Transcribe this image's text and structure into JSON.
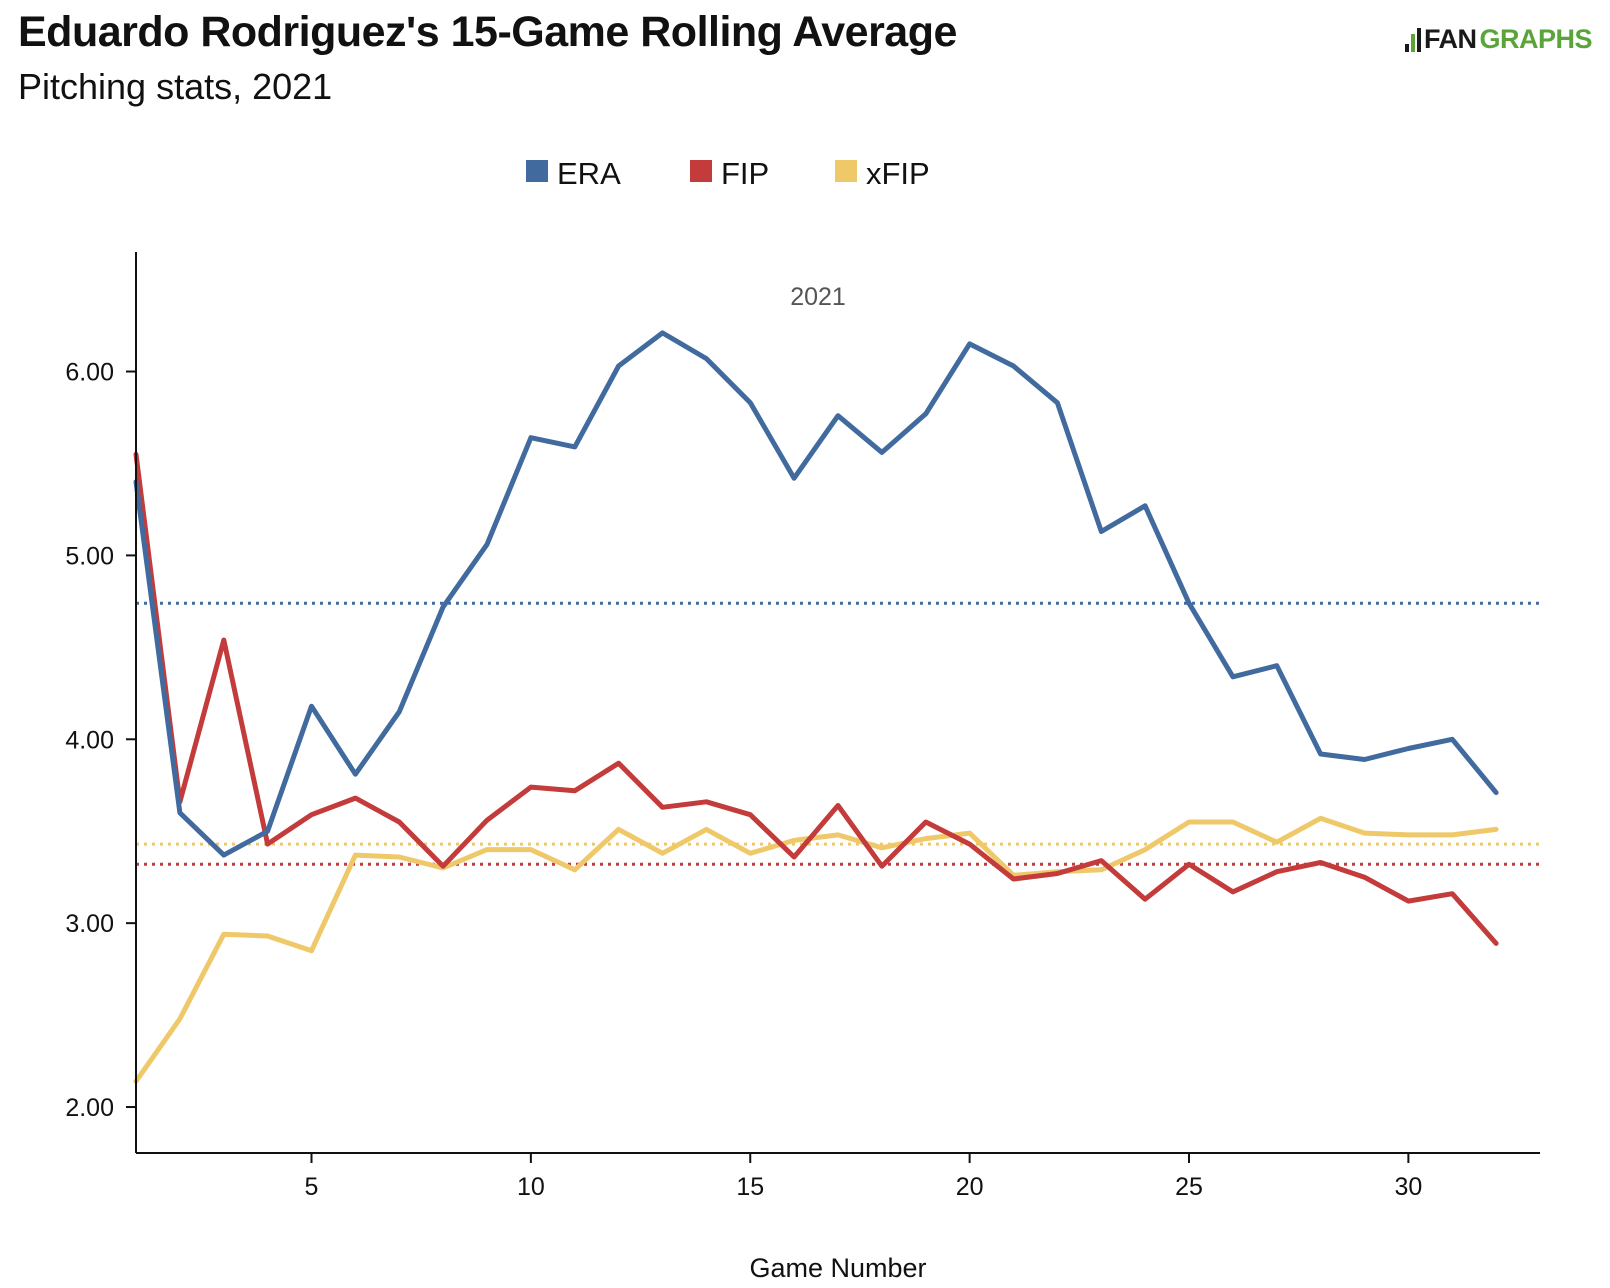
{
  "header": {
    "title": "Eduardo Rodriguez's 15-Game Rolling Average",
    "subtitle": "Pitching stats, 2021",
    "logo": {
      "prefix": "",
      "fan": "FAN",
      "graphs": "GRAPHS"
    }
  },
  "colors": {
    "ERA": "#416a9e",
    "FIP": "#c33b3b",
    "xFIP": "#efc86a",
    "axis": "#111111",
    "logo_green": "#5aa43a"
  },
  "chart_data": {
    "type": "line",
    "title": "Eduardo Rodriguez's 15-Game Rolling Average",
    "subtitle": "Pitching stats, 2021",
    "panel_label": "2021",
    "xlabel": "Game Number",
    "ylabel": "",
    "xlim": [
      1,
      33
    ],
    "ylim": [
      1.75,
      6.65
    ],
    "x_ticks": [
      5,
      10,
      15,
      20,
      25,
      30
    ],
    "x_tick_labels": [
      "5",
      "10",
      "15",
      "20",
      "25",
      "30"
    ],
    "y_ticks": [
      2,
      3,
      4,
      5,
      6
    ],
    "y_tick_labels": [
      "2.00",
      "3.00",
      "4.00",
      "5.00",
      "6.00"
    ],
    "grid": false,
    "legend_position": "top-center",
    "x": [
      1,
      2,
      3,
      4,
      5,
      6,
      7,
      8,
      9,
      10,
      11,
      12,
      13,
      14,
      15,
      16,
      17,
      18,
      19,
      20,
      21,
      22,
      23,
      24,
      25,
      26,
      27,
      28,
      29,
      30,
      31,
      32
    ],
    "series": [
      {
        "name": "ERA",
        "color": "#416a9e",
        "values": [
          5.4,
          3.6,
          3.37,
          3.5,
          4.18,
          3.81,
          4.15,
          4.72,
          5.06,
          5.64,
          5.59,
          6.03,
          6.21,
          6.07,
          5.83,
          5.42,
          5.76,
          5.56,
          5.77,
          6.15,
          6.03,
          5.83,
          5.13,
          5.27,
          4.74,
          4.34,
          4.4,
          3.92,
          3.89,
          3.95,
          4.0,
          3.71
        ]
      },
      {
        "name": "FIP",
        "color": "#c33b3b",
        "values": [
          5.55,
          3.66,
          4.54,
          3.43,
          3.59,
          3.68,
          3.55,
          3.31,
          3.56,
          3.74,
          3.72,
          3.87,
          3.63,
          3.66,
          3.59,
          3.36,
          3.64,
          3.31,
          3.55,
          3.43,
          3.24,
          3.27,
          3.34,
          3.13,
          3.32,
          3.17,
          3.28,
          3.33,
          3.25,
          3.12,
          3.16,
          2.89
        ]
      },
      {
        "name": "xFIP",
        "color": "#efc86a",
        "values": [
          2.14,
          2.48,
          2.94,
          2.93,
          2.85,
          3.37,
          3.36,
          3.3,
          3.4,
          3.4,
          3.29,
          3.51,
          3.38,
          3.51,
          3.38,
          3.45,
          3.48,
          3.41,
          3.46,
          3.49,
          3.26,
          3.28,
          3.29,
          3.4,
          3.55,
          3.55,
          3.44,
          3.57,
          3.49,
          3.48,
          3.48,
          3.51
        ]
      }
    ],
    "season_averages": [
      {
        "series": "ERA",
        "value": 4.74
      },
      {
        "series": "FIP",
        "value": 3.32
      },
      {
        "series": "xFIP",
        "value": 3.43
      }
    ]
  }
}
